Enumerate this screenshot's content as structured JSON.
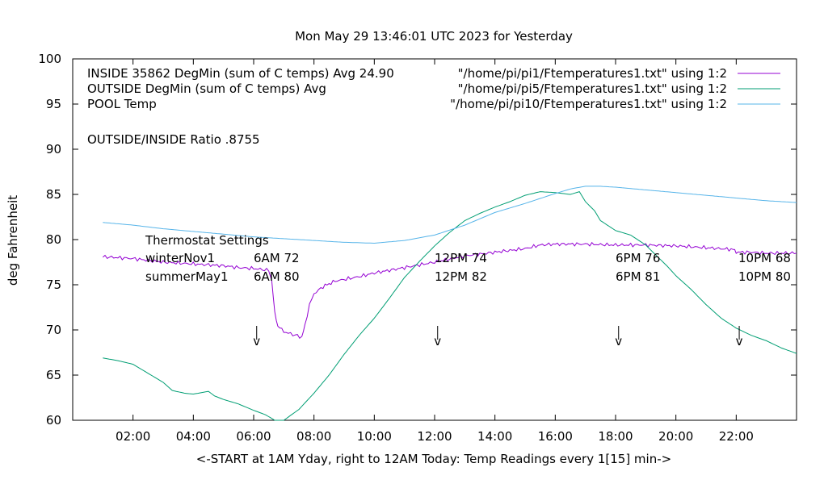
{
  "chart_data": {
    "type": "line",
    "title": "Mon May 29 13:46:01 UTC 2023 for Yesterday",
    "xlabel": "<-START at 1AM Yday, right to 12AM Today:  Temp Readings every 1[15] min->",
    "ylabel": "deg Fahrenheit",
    "xlim": [
      0.0,
      24.0
    ],
    "ylim": [
      60,
      100
    ],
    "x_unit": "hours",
    "x_ticks": [
      {
        "x": 2,
        "label": "02:00"
      },
      {
        "x": 4,
        "label": "04:00"
      },
      {
        "x": 6,
        "label": "06:00"
      },
      {
        "x": 8,
        "label": "08:00"
      },
      {
        "x": 10,
        "label": "10:00"
      },
      {
        "x": 12,
        "label": "12:00"
      },
      {
        "x": 14,
        "label": "14:00"
      },
      {
        "x": 16,
        "label": "16:00"
      },
      {
        "x": 18,
        "label": "18:00"
      },
      {
        "x": 20,
        "label": "20:00"
      },
      {
        "x": 22,
        "label": "22:00"
      }
    ],
    "y_ticks": [
      60,
      65,
      70,
      75,
      80,
      85,
      90,
      95,
      100
    ],
    "legend_position": "top-left",
    "grid": false,
    "series": [
      {
        "name": "\"/home/pi/pi1/Ftemperatures1.txt\" using 1:2",
        "label": "INSIDE 35862 DegMin (sum of C temps) Avg 24.90",
        "color": "#9400d3",
        "x": [
          1.0,
          2.0,
          3.0,
          4.0,
          5.0,
          5.5,
          6.0,
          6.5,
          6.6,
          6.7,
          6.8,
          7.0,
          7.3,
          7.6,
          7.7,
          7.85,
          8.0,
          8.3,
          8.7,
          9.5,
          10.0,
          11.0,
          12.0,
          13.0,
          14.0,
          15.0,
          15.5,
          16.0,
          17.0,
          18.0,
          19.0,
          20.0,
          21.0,
          21.9,
          22.0,
          22.5,
          23.0,
          23.5,
          24.0
        ],
        "y": [
          78.1,
          77.9,
          77.5,
          77.3,
          77.1,
          76.9,
          76.8,
          76.6,
          75.5,
          71.8,
          70.5,
          69.8,
          69.5,
          69.2,
          70.5,
          72.8,
          74.0,
          74.8,
          75.4,
          75.9,
          76.3,
          76.9,
          77.5,
          78.2,
          78.6,
          79.0,
          79.4,
          79.5,
          79.5,
          79.4,
          79.4,
          79.3,
          79.1,
          78.9,
          78.6,
          78.6,
          78.5,
          78.5,
          78.5
        ]
      },
      {
        "name": "\"/home/pi/pi5/Ftemperatures1.txt\" using 1:2",
        "label": "OUTSIDE  DegMin (sum of C temps) Avg",
        "color": "#009e73",
        "x": [
          1.0,
          1.5,
          2.0,
          2.5,
          3.0,
          3.3,
          3.7,
          4.0,
          4.5,
          4.7,
          5.0,
          5.5,
          6.0,
          6.4,
          6.7,
          7.0,
          7.5,
          8.0,
          8.5,
          9.0,
          9.5,
          10.0,
          10.5,
          11.0,
          11.5,
          12.0,
          12.5,
          13.0,
          13.5,
          14.0,
          14.5,
          15.0,
          15.5,
          16.0,
          16.5,
          16.8,
          17.0,
          17.3,
          17.5,
          18.0,
          18.5,
          19.0,
          19.3,
          19.7,
          20.0,
          20.5,
          21.0,
          21.5,
          22.0,
          22.5,
          23.0,
          23.5,
          24.0
        ],
        "y": [
          66.9,
          66.6,
          66.2,
          65.2,
          64.2,
          63.3,
          63.0,
          62.9,
          63.2,
          62.7,
          62.3,
          61.8,
          61.1,
          60.6,
          60.0,
          60.0,
          61.2,
          63.0,
          65.0,
          67.3,
          69.4,
          71.3,
          73.5,
          75.8,
          77.6,
          79.3,
          80.8,
          82.1,
          82.9,
          83.6,
          84.2,
          84.9,
          85.3,
          85.2,
          85.0,
          85.3,
          84.2,
          83.2,
          82.1,
          81.0,
          80.5,
          79.4,
          78.4,
          77.1,
          76.0,
          74.5,
          72.8,
          71.3,
          70.2,
          69.4,
          68.8,
          68.0,
          67.4
        ]
      },
      {
        "name": "\"/home/pi/pi10/Ftemperatures1.txt\" using 1:2",
        "label": "POOL Temp",
        "color": "#56b4e9",
        "x": [
          1.0,
          2.0,
          3.0,
          4.0,
          5.0,
          6.0,
          7.0,
          8.0,
          9.0,
          10.0,
          11.0,
          12.0,
          13.0,
          14.0,
          15.0,
          16.0,
          16.5,
          17.0,
          17.5,
          18.0,
          19.0,
          20.0,
          21.0,
          22.0,
          23.0,
          24.0
        ],
        "y": [
          81.9,
          81.6,
          81.2,
          80.9,
          80.6,
          80.3,
          80.1,
          79.9,
          79.7,
          79.6,
          79.9,
          80.5,
          81.6,
          83.0,
          84.0,
          85.1,
          85.6,
          85.9,
          85.9,
          85.8,
          85.5,
          85.2,
          84.9,
          84.6,
          84.3,
          84.1
        ]
      }
    ],
    "annotations": {
      "ratio": "OUTSIDE/INSIDE Ratio .8755",
      "thermostat_title": "Thermostat Settings",
      "rows": [
        {
          "label": "winterNov1",
          "entries": [
            "6AM 72",
            "12PM 74",
            "6PM 76",
            "10PM 68"
          ]
        },
        {
          "label": "summerMay1",
          "entries": [
            "6AM 80",
            "12PM 82",
            "6PM 81",
            "10PM 80"
          ]
        }
      ],
      "arrow_glyph": "v",
      "arrow_x": [
        6.1,
        12.1,
        18.1,
        22.1
      ]
    }
  }
}
